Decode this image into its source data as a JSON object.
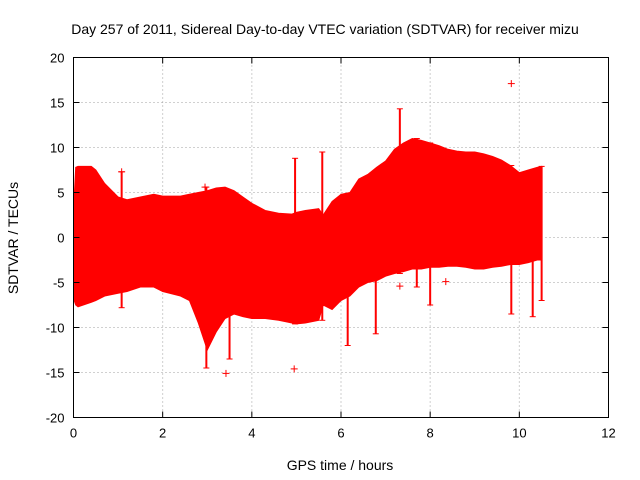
{
  "chart_data": {
    "type": "area",
    "title": "Day 257 of 2011, Sidereal Day-to-day VTEC variation (SDTVAR) for receiver mizu",
    "xlabel": "GPS time / hours",
    "ylabel": "SDTVAR / TECUs",
    "xlim": [
      0,
      12
    ],
    "ylim": [
      -20,
      20
    ],
    "xticks": [
      0,
      2,
      4,
      6,
      8,
      10,
      12
    ],
    "yticks": [
      -20,
      -15,
      -10,
      -5,
      0,
      5,
      10,
      15,
      20
    ],
    "grid": true,
    "series_color": "#ff0000",
    "envelope": {
      "x": [
        0.0,
        0.05,
        0.1,
        0.4,
        0.5,
        0.7,
        1.0,
        1.2,
        1.5,
        1.8,
        2.0,
        2.4,
        2.6,
        2.8,
        3.0,
        3.2,
        3.4,
        3.6,
        3.8,
        4.0,
        4.3,
        4.6,
        4.9,
        5.0,
        5.2,
        5.5,
        5.6,
        5.8,
        6.0,
        6.2,
        6.4,
        6.6,
        6.8,
        7.0,
        7.2,
        7.4,
        7.6,
        7.8,
        8.0,
        8.2,
        8.4,
        8.6,
        8.8,
        9.0,
        9.2,
        9.4,
        9.6,
        9.8,
        10.0,
        10.2,
        10.4,
        10.5
      ],
      "upper": [
        3.0,
        7.8,
        7.9,
        7.9,
        7.5,
        6.0,
        4.5,
        4.2,
        4.5,
        4.8,
        4.6,
        4.6,
        4.8,
        5.0,
        5.2,
        5.5,
        5.6,
        5.2,
        4.5,
        3.8,
        3.0,
        2.7,
        2.6,
        2.8,
        3.0,
        3.2,
        2.5,
        4.0,
        4.8,
        5.0,
        6.5,
        7.0,
        7.8,
        8.5,
        9.8,
        10.5,
        11.0,
        10.8,
        10.5,
        10.2,
        9.8,
        9.6,
        9.5,
        9.5,
        9.3,
        9.0,
        8.6,
        8.0,
        7.2,
        7.5,
        7.8,
        7.9
      ],
      "lower": [
        -6.8,
        -7.5,
        -7.7,
        -7.2,
        -7.0,
        -6.5,
        -6.2,
        -6.0,
        -5.5,
        -5.5,
        -6.0,
        -6.5,
        -7.0,
        -9.5,
        -12.5,
        -10.5,
        -9.0,
        -8.5,
        -8.8,
        -9.0,
        -9.0,
        -9.2,
        -9.5,
        -9.6,
        -9.5,
        -9.2,
        -7.5,
        -8.0,
        -7.0,
        -6.5,
        -5.5,
        -5.0,
        -4.8,
        -4.3,
        -4.0,
        -3.8,
        -3.5,
        -3.5,
        -3.3,
        -3.3,
        -3.2,
        -3.2,
        -3.3,
        -3.5,
        -3.5,
        -3.3,
        -3.2,
        -3.0,
        -3.0,
        -2.8,
        -2.5,
        -2.5
      ]
    },
    "spikes": [
      {
        "x": 1.08,
        "top": 7.3,
        "bottom": -7.8
      },
      {
        "x": 2.98,
        "top": 5.6,
        "bottom": -14.5
      },
      {
        "x": 3.5,
        "top": 4.8,
        "bottom": -13.5
      },
      {
        "x": 4.97,
        "top": 8.8,
        "bottom": -9.6
      },
      {
        "x": 5.58,
        "top": 9.5,
        "bottom": -9.2
      },
      {
        "x": 6.15,
        "top": 4.8,
        "bottom": -12.0
      },
      {
        "x": 6.78,
        "top": 6.5,
        "bottom": -10.7
      },
      {
        "x": 7.32,
        "top": 14.3,
        "bottom": -4.0
      },
      {
        "x": 7.7,
        "top": 11.0,
        "bottom": -5.5
      },
      {
        "x": 8.0,
        "top": 10.5,
        "bottom": -7.5
      },
      {
        "x": 9.82,
        "top": 8.0,
        "bottom": -8.5
      },
      {
        "x": 10.3,
        "top": 7.5,
        "bottom": -8.8
      },
      {
        "x": 10.5,
        "top": 7.9,
        "bottom": -7.0
      }
    ],
    "outliers": [
      {
        "x": 9.82,
        "y": 17.1
      },
      {
        "x": 4.95,
        "y": -14.6
      },
      {
        "x": 3.42,
        "y": -15.1
      },
      {
        "x": 2.95,
        "y": 5.6
      },
      {
        "x": 1.08,
        "y": 7.3
      },
      {
        "x": 7.32,
        "y": -5.4
      },
      {
        "x": 8.35,
        "y": -4.9
      }
    ]
  }
}
